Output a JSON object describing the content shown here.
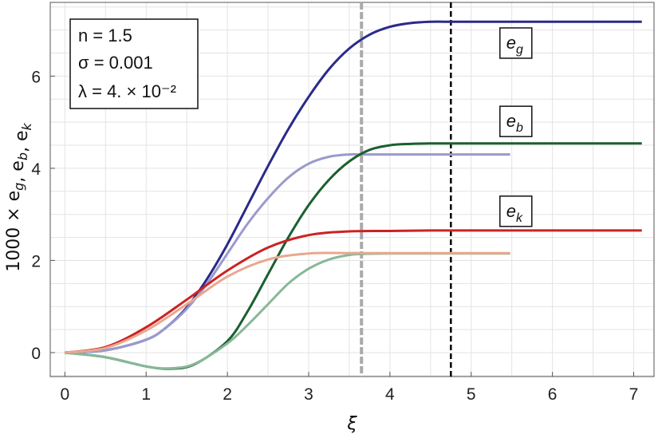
{
  "chart_data": {
    "type": "line",
    "xlabel": "ξ",
    "ylabel": "1000 × e_g, e_b, e_k",
    "xlim": [
      -0.18,
      7.25
    ],
    "ylim": [
      -0.52,
      7.6
    ],
    "xticks": [
      0,
      1,
      2,
      3,
      4,
      5,
      6,
      7
    ],
    "yticks": [
      0,
      2,
      4,
      6
    ],
    "grid": true,
    "info_box": {
      "lines": [
        "n = 1.5",
        "σ = 0.001",
        "λ = 4. × 10⁻²"
      ]
    },
    "vertical_lines": [
      {
        "x": 3.65,
        "color": "#aaaaaa",
        "style": "dashed"
      },
      {
        "x": 4.75,
        "color": "#000000",
        "style": "dashed"
      }
    ],
    "labels": [
      {
        "text": "e_g",
        "x": 5.55,
        "y": 6.7
      },
      {
        "text": "e_b",
        "x": 5.55,
        "y": 5.0
      },
      {
        "text": "e_k",
        "x": 5.55,
        "y": 3.05
      }
    ],
    "series": [
      {
        "color": "#2a2a8a",
        "x": [
          0,
          0.5,
          1,
          1.25,
          1.5,
          1.75,
          2,
          2.25,
          2.5,
          2.75,
          3,
          3.25,
          3.5,
          3.75,
          4,
          4.25,
          4.5,
          4.75,
          5,
          6,
          7.1
        ],
        "y": [
          0,
          0.05,
          0.28,
          0.55,
          0.98,
          1.6,
          2.35,
          3.2,
          4.05,
          4.85,
          5.55,
          6.15,
          6.6,
          6.9,
          7.07,
          7.15,
          7.18,
          7.18,
          7.18,
          7.18,
          7.18
        ]
      },
      {
        "color": "#9a9acc",
        "x": [
          0,
          0.5,
          1,
          1.25,
          1.5,
          1.75,
          2,
          2.25,
          2.5,
          2.75,
          3,
          3.25,
          3.5,
          3.65,
          4,
          4.5,
          5,
          5.48
        ],
        "y": [
          0,
          0.05,
          0.28,
          0.55,
          0.95,
          1.5,
          2.15,
          2.8,
          3.35,
          3.8,
          4.1,
          4.25,
          4.3,
          4.3,
          4.3,
          4.3,
          4.3,
          4.3
        ]
      },
      {
        "color": "#1a6030",
        "x": [
          0,
          0.5,
          1,
          1.3,
          1.6,
          2,
          2.25,
          2.5,
          2.75,
          3,
          3.25,
          3.5,
          3.75,
          4,
          4.25,
          4.5,
          5,
          6,
          7.1
        ],
        "y": [
          0,
          -0.1,
          -0.3,
          -0.35,
          -0.25,
          0.25,
          0.9,
          1.7,
          2.5,
          3.2,
          3.75,
          4.15,
          4.4,
          4.5,
          4.53,
          4.54,
          4.54,
          4.54,
          4.54
        ]
      },
      {
        "color": "#88b898",
        "x": [
          0,
          0.5,
          1,
          1.3,
          1.6,
          2,
          2.25,
          2.5,
          2.75,
          3,
          3.25,
          3.5,
          3.65,
          4,
          4.5,
          5,
          5.48
        ],
        "y": [
          0,
          -0.1,
          -0.3,
          -0.34,
          -0.24,
          0.2,
          0.6,
          1.05,
          1.5,
          1.82,
          2.02,
          2.12,
          2.14,
          2.15,
          2.15,
          2.15,
          2.15
        ]
      },
      {
        "color": "#cc2222",
        "x": [
          0,
          0.5,
          1,
          1.5,
          2,
          2.5,
          3,
          3.5,
          4,
          4.5,
          5,
          6,
          7.1
        ],
        "y": [
          0,
          0.12,
          0.55,
          1.15,
          1.78,
          2.28,
          2.55,
          2.63,
          2.64,
          2.65,
          2.65,
          2.65,
          2.65
        ]
      },
      {
        "color": "#e8a890",
        "x": [
          0,
          0.5,
          1,
          1.5,
          2,
          2.5,
          3,
          3.5,
          3.65,
          4,
          4.5,
          5,
          5.48
        ],
        "y": [
          0,
          0.1,
          0.48,
          1.05,
          1.65,
          2.02,
          2.15,
          2.16,
          2.16,
          2.16,
          2.16,
          2.16,
          2.16
        ]
      }
    ]
  }
}
